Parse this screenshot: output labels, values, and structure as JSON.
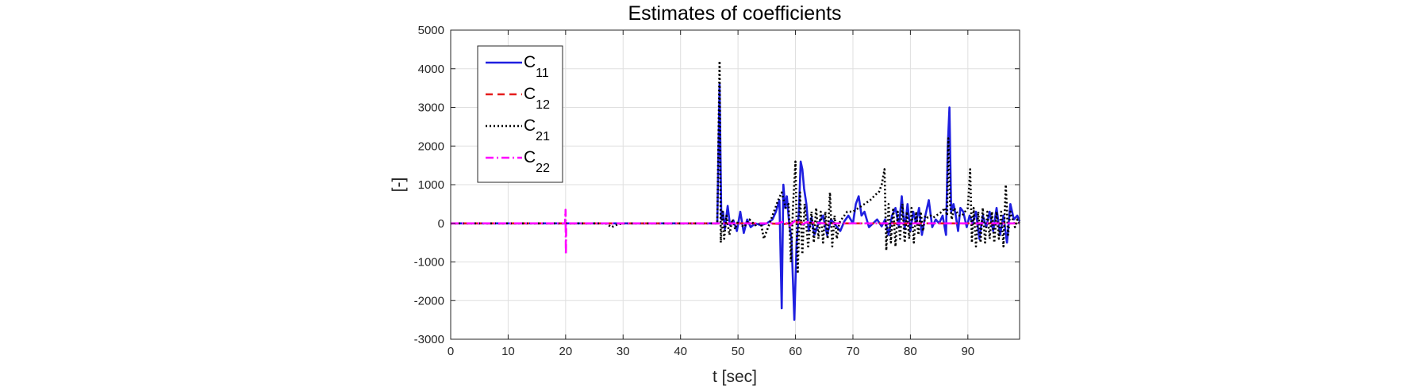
{
  "chart_data": {
    "type": "line",
    "title": "Estimates of coefficients",
    "xlabel": "t [sec]",
    "ylabel": "[-]",
    "xlim": [
      0,
      99
    ],
    "ylim": [
      -3000,
      5000
    ],
    "xticks": [
      0,
      10,
      20,
      30,
      40,
      50,
      60,
      70,
      80,
      90
    ],
    "xtick_labels": [
      "0",
      "10",
      "20",
      "30",
      "40",
      "50",
      "60",
      "70",
      "80",
      "90"
    ],
    "yticks": [
      -3000,
      -2000,
      -1000,
      0,
      1000,
      2000,
      3000,
      4000,
      5000
    ],
    "ytick_labels": [
      "-3000",
      "-2000",
      "-1000",
      "0",
      "1000",
      "2000",
      "3000",
      "4000",
      "5000"
    ],
    "grid": true,
    "legend_position": "top-left",
    "series": [
      {
        "name": "C",
        "subscript": "11",
        "color": "#1f1fe0",
        "style": "solid",
        "x": [
          0,
          20,
          30,
          46.4,
          46.8,
          47.1,
          47.4,
          47.7,
          48.2,
          48.6,
          49.2,
          49.8,
          50.4,
          51,
          51.6,
          52.2,
          53,
          54,
          55,
          56,
          56.6,
          57.2,
          57.6,
          57.9,
          58.2,
          58.5,
          58.9,
          59.3,
          59.8,
          60.2,
          60.6,
          60.9,
          61.2,
          61.5,
          61.9,
          62.3,
          62.8,
          63.3,
          64,
          64.8,
          65.5,
          66.2,
          67,
          67.8,
          68.5,
          69.2,
          70,
          70.5,
          71,
          71.5,
          72,
          72.8,
          73.5,
          74.2,
          75,
          75.6,
          76.2,
          76.8,
          77.4,
          78,
          78.5,
          79,
          79.5,
          80,
          80.5,
          81,
          81.5,
          82,
          82.6,
          83.2,
          83.8,
          84.4,
          85,
          85.6,
          86.2,
          86.5,
          86.8,
          87.1,
          87.5,
          87.9,
          88.3,
          88.7,
          89.2,
          89.8,
          90.3,
          90.8,
          91.4,
          92,
          92.6,
          93.2,
          93.8,
          94.4,
          95,
          95.6,
          96.2,
          96.8,
          97.4,
          98,
          98.6,
          99
        ],
        "y": [
          0,
          0,
          0,
          0,
          3600,
          100,
          300,
          -150,
          450,
          -50,
          80,
          -200,
          300,
          -250,
          100,
          -100,
          0,
          -50,
          0,
          100,
          300,
          600,
          -2200,
          1000,
          400,
          700,
          0,
          -400,
          -2500,
          -500,
          300,
          1600,
          1400,
          900,
          500,
          -200,
          150,
          -300,
          0,
          200,
          -300,
          100,
          -50,
          -200,
          50,
          200,
          0,
          500,
          700,
          200,
          300,
          -100,
          0,
          100,
          -80,
          100,
          -300,
          200,
          400,
          -100,
          700,
          -150,
          500,
          -200,
          300,
          0,
          400,
          -300,
          200,
          600,
          -100,
          100,
          0,
          200,
          -300,
          2000,
          3000,
          300,
          500,
          200,
          -200,
          400,
          300,
          -100,
          200,
          0,
          300,
          -400,
          200,
          -100,
          300,
          -200,
          400,
          -300,
          200,
          -500,
          500,
          100,
          200,
          50
        ]
      },
      {
        "name": "C",
        "subscript": "12",
        "color": "#e51c1c",
        "style": "dashed",
        "x": [
          0,
          20,
          40,
          50,
          55,
          58,
          60,
          62,
          65,
          70,
          75,
          80,
          85,
          90,
          95,
          99
        ],
        "y": [
          0,
          0,
          0,
          0,
          0,
          -20,
          30,
          10,
          0,
          0,
          0,
          0,
          0,
          0,
          0,
          0
        ]
      },
      {
        "name": "C",
        "subscript": "21",
        "color": "#000000",
        "style": "dotted",
        "x": [
          0,
          20,
          27,
          28,
          29,
          30,
          40,
          46.4,
          46.8,
          47,
          47.3,
          47.6,
          48,
          48.5,
          49,
          49.5,
          50,
          51,
          52,
          53,
          54,
          54.5,
          55,
          56,
          57,
          57.6,
          58.3,
          58.8,
          59.2,
          59.6,
          60,
          60.4,
          60.8,
          61.2,
          61.6,
          62.2,
          62.8,
          63.2,
          63.6,
          64,
          64.4,
          64.8,
          65.2,
          65.6,
          66,
          66.4,
          66.8,
          67.2,
          67.6,
          68,
          68.5,
          69,
          70,
          71,
          72,
          73,
          74,
          74.5,
          75,
          75.5,
          75.8,
          76.2,
          76.6,
          77,
          77.4,
          77.8,
          78.2,
          78.6,
          79,
          79.4,
          79.8,
          80.2,
          80.6,
          81,
          81.4,
          81.8,
          82.2,
          82.6,
          83,
          83.5,
          84,
          84.5,
          85,
          85.5,
          86,
          86.4,
          86.6,
          86.9,
          87.2,
          87.6,
          88,
          88.5,
          89,
          89.5,
          90,
          90.4,
          90.7,
          91,
          91.4,
          91.8,
          92.2,
          92.6,
          93,
          93.4,
          93.8,
          94.2,
          94.6,
          95,
          95.4,
          95.8,
          96.2,
          96.6,
          97,
          97.4,
          97.8,
          98.2,
          98.6,
          99
        ],
        "y": [
          0,
          0,
          0,
          -100,
          -30,
          0,
          0,
          0,
          4200,
          -500,
          300,
          -400,
          200,
          -300,
          100,
          -150,
          50,
          -100,
          100,
          -50,
          0,
          -400,
          -200,
          200,
          600,
          800,
          400,
          500,
          -1000,
          500,
          1600,
          -1300,
          800,
          -800,
          500,
          -600,
          300,
          -500,
          400,
          -400,
          300,
          -500,
          300,
          -400,
          800,
          -600,
          200,
          -400,
          0,
          100,
          200,
          300,
          300,
          400,
          500,
          600,
          750,
          800,
          1000,
          1400,
          -700,
          500,
          -500,
          400,
          -600,
          300,
          -400,
          500,
          -500,
          300,
          -400,
          400,
          -500,
          300,
          -300,
          300,
          -200,
          200,
          150,
          200,
          150,
          200,
          250,
          300,
          400,
          200,
          2200,
          500,
          100,
          400,
          300,
          200,
          200,
          300,
          400,
          1400,
          -500,
          400,
          -600,
          300,
          -500,
          400,
          -500,
          300,
          -400,
          300,
          -500,
          300,
          -400,
          300,
          -600,
          1000,
          -300,
          300,
          100,
          -100,
          100,
          0
        ]
      },
      {
        "name": "C",
        "subscript": "22",
        "color": "#ff00ff",
        "style": "dashdot",
        "x": [
          0,
          19.9,
          20,
          20.05,
          20.1,
          20.2,
          40,
          57,
          58,
          59,
          60,
          61,
          62,
          65,
          70,
          75,
          80,
          85,
          90,
          95,
          99
        ],
        "y": [
          0,
          0,
          350,
          -800,
          0,
          0,
          0,
          0,
          50,
          -60,
          80,
          -40,
          30,
          0,
          0,
          0,
          0,
          0,
          0,
          0,
          0
        ]
      }
    ]
  }
}
